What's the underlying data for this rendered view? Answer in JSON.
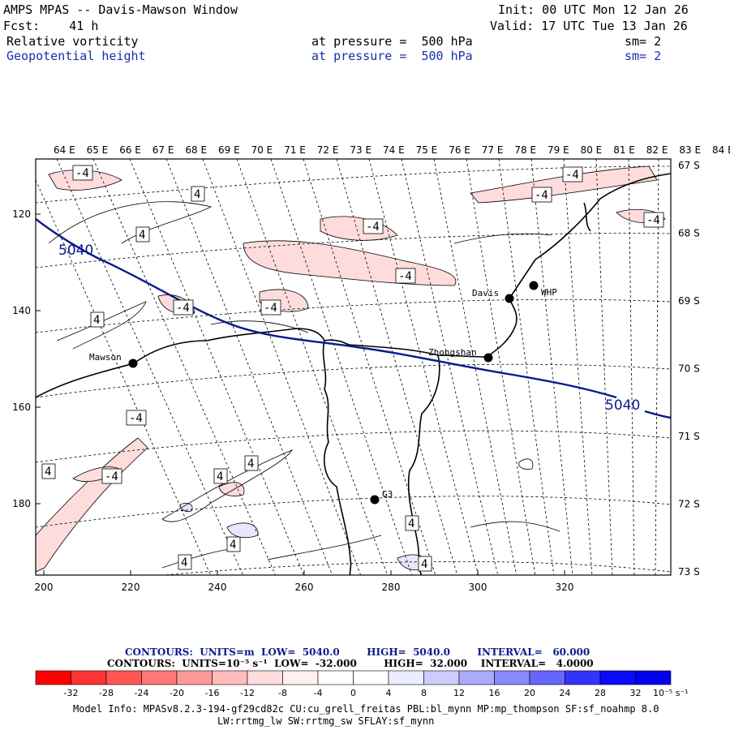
{
  "header": {
    "title": "AMPS MPAS -- Davis-Mawson Window",
    "init": "Init: 00 UTC Mon 12 Jan 26",
    "fcst": "Fcst:    41 h",
    "valid": "Valid: 17 UTC Tue 13 Jan 26",
    "field1": "Relative vorticity",
    "field1_level": "at pressure =  500 hPa",
    "field1_sm": "sm= 2",
    "field2": "Geopotential height",
    "field2_level": "at pressure =  500 hPa",
    "field2_sm": "sm= 2"
  },
  "axes": {
    "top_lon": [
      "64 E",
      "65 E",
      "66 E",
      "67 E",
      "68 E",
      "69 E",
      "70 E",
      "71 E",
      "72 E",
      "73 E",
      "74 E",
      "75 E",
      "76 E",
      "77 E",
      "78 E",
      "79 E",
      "80 E",
      "81 E",
      "82 E",
      "83 E",
      "84 E"
    ],
    "right_lat": [
      "67 S",
      "68 S",
      "69 S",
      "70 S",
      "71 S",
      "72 S",
      "73 S"
    ],
    "x_ticks": [
      "200",
      "220",
      "240",
      "260",
      "280",
      "300",
      "320"
    ],
    "y_ticks": [
      "120",
      "140",
      "160",
      "180"
    ]
  },
  "stations": [
    {
      "name": "Mawson"
    },
    {
      "name": "Davis"
    },
    {
      "name": "WHP"
    },
    {
      "name": "Zhongshan"
    },
    {
      "name": "G3"
    }
  ],
  "contour_labels": {
    "height": "5040",
    "vort_neg": "-4",
    "vort_pos": "4"
  },
  "footer": {
    "contours1": "CONTOURS:  UNITS=m  LOW=  5040.0        HIGH=  5040.0        INTERVAL=   60.000",
    "contours2": "CONTOURS:  UNITS=10⁻⁵ s⁻¹  LOW=  -32.000        HIGH=  32.000    INTERVAL=   4.0000",
    "units": "10⁻⁵ s⁻¹",
    "model_info": "Model Info: MPASv8.2.3-194-gf29cd82c CU:cu_grell_freitas PBL:bl_mynn MP:mp_thompson SF:sf_noahmp 8.0",
    "model_info2": "LW:rrtmg_lw SW:rrtmg_sw SFLAY:sf_mynn"
  },
  "colorbar": {
    "colors": [
      "#ff0000",
      "#ff3333",
      "#ff5555",
      "#ff7777",
      "#ff9999",
      "#ffbbbb",
      "#ffdddd",
      "#fff0f0",
      "#ffffff",
      "#ffffff",
      "#ececff",
      "#ccccff",
      "#aaaaff",
      "#8888ff",
      "#6666ff",
      "#3333ff",
      "#0a0aff",
      "#0000ee"
    ],
    "labels": [
      "-32",
      "-28",
      "-24",
      "-20",
      "-16",
      "-12",
      "-8",
      "-4",
      "0",
      "4",
      "8",
      "12",
      "16",
      "20",
      "24",
      "28",
      "32"
    ]
  }
}
